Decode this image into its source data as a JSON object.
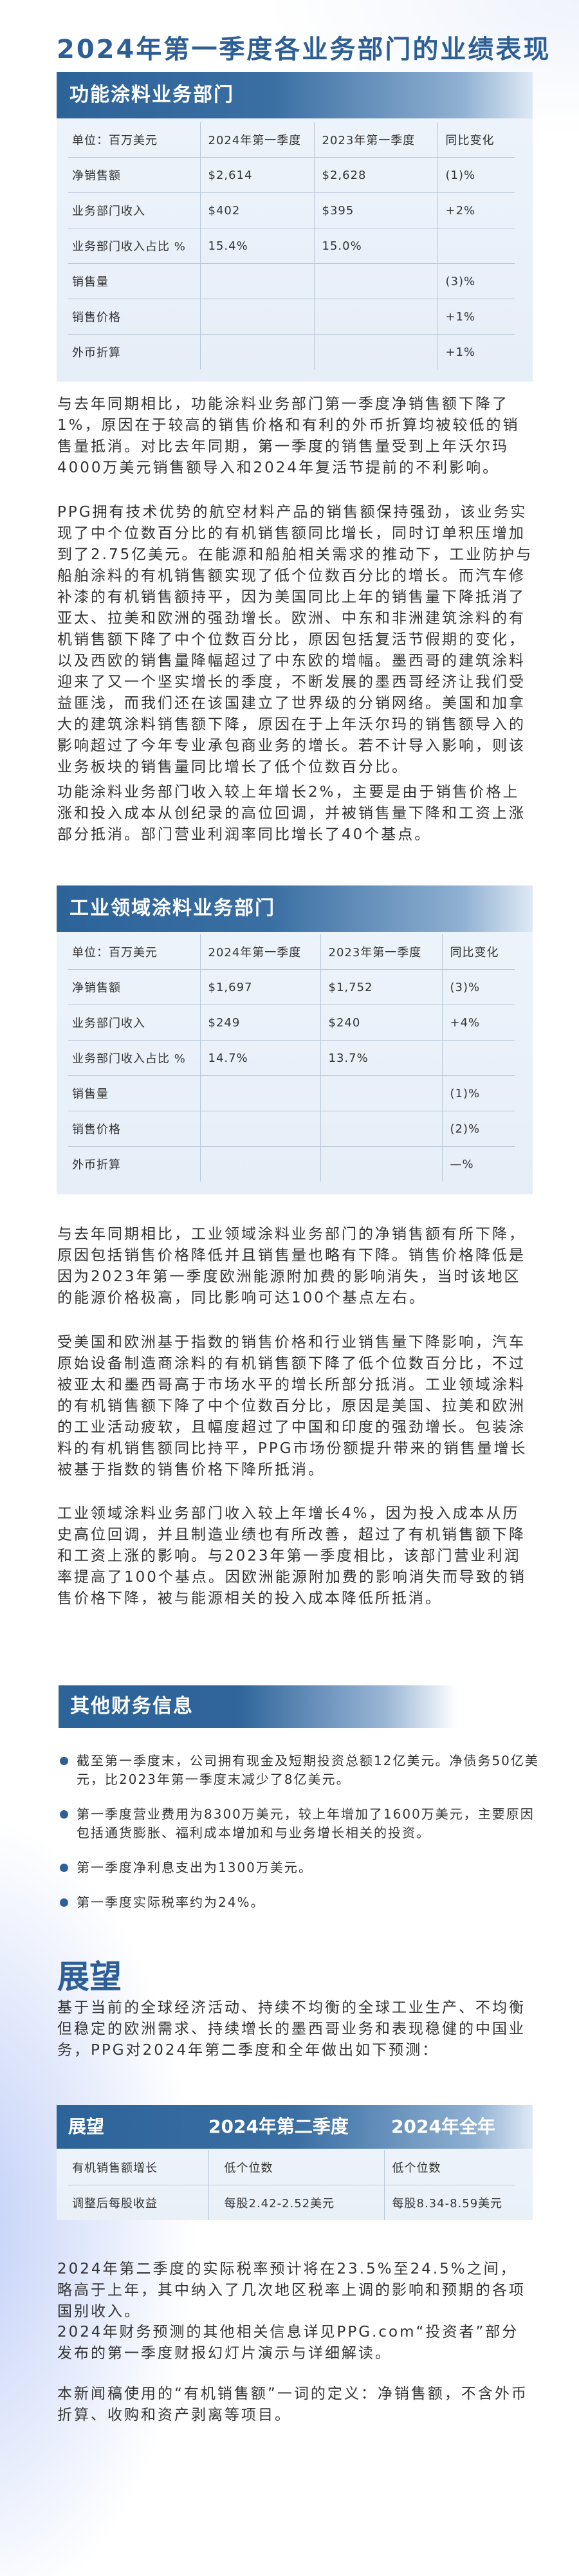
{
  "page_title": "2024年第一季度各业务部门的业绩表现",
  "performance_coatings": {
    "title": "功能涂料业务部门",
    "header": [
      "单位：百万美元",
      "2024年第一季度",
      "2023年第一季度",
      "同比变化"
    ],
    "rows": [
      [
        "净销售额",
        "$2,614",
        "$2,628",
        "(1)%"
      ],
      [
        "业务部门收入",
        "$402",
        "$395",
        "+2%"
      ],
      [
        "业务部门收入占比 %",
        "15.4%",
        "15.0%",
        ""
      ],
      [
        "销售量",
        "",
        "",
        "(3)%"
      ],
      [
        "销售价格",
        "",
        "",
        "+1%"
      ],
      [
        "外币折算",
        "",
        "",
        "+1%"
      ]
    ],
    "paragraphs": [
      "与去年同期相比，功能涂料业务部门第一季度净销售额下降了1%，原因在于较高的销售价格和有利的外币折算均被较低的销售量抵消。对比去年同期，第一季度的销售量受到上年沃尔玛4000万美元销售额导入和2024年复活节提前的不利影响。",
      "PPG拥有技术优势的航空材料产品的销售额保持强劲，该业务实现了中个位数百分比的有机销售额同比增长，同时订单积压增加到了2.75亿美元。在能源和船舶相关需求的推动下，工业防护与船舶涂料的有机销售额实现了低个位数百分比的增长。而汽车修补漆的有机销售额持平，因为美国同比上年的销售量下降抵消了亚太、拉美和欧洲的强劲增长。欧洲、中东和非洲建筑涂料的有机销售额下降了中个位数百分比，原因包括复活节假期的变化，以及西欧的销售量降幅超过了中东欧的增幅。墨西哥的建筑涂料迎来了又一个坚实增长的季度，不断发展的墨西哥经济让我们受益匪浅，而我们还在该国建立了世界级的分销网络。美国和加拿大的建筑涂料销售额下降，原因在于上年沃尔玛的销售额导入的影响超过了今年专业承包商业务的增长。若不计导入影响，则该业务板块的销售量同比增长了低个位数百分比。",
      "功能涂料业务部门收入较上年增长2%，主要是由于销售价格上涨和投入成本从创纪录的高位回调，并被销售量下降和工资上涨部分抵消。部门营业利润率同比增长了40个基点。"
    ]
  },
  "industrial_coatings": {
    "title": "工业领域涂料业务部门",
    "header": [
      "单位：百万美元",
      "2024年第一季度",
      "2023年第一季度",
      "同比变化"
    ],
    "rows": [
      [
        "净销售额",
        "$1,697",
        "$1,752",
        "(3)%"
      ],
      [
        "业务部门收入",
        "$249",
        "$240",
        "+4%"
      ],
      [
        "业务部门收入占比 %",
        "14.7%",
        "13.7%",
        ""
      ],
      [
        "销售量",
        "",
        "",
        "(1)%"
      ],
      [
        "销售价格",
        "",
        "",
        "(2)%"
      ],
      [
        "外币折算",
        "",
        "",
        "—%"
      ]
    ],
    "paragraphs": [
      "与去年同期相比，工业领域涂料业务部门的净销售额有所下降，原因包括销售价格降低并且销售量也略有下降。销售价格降低是因为2023年第一季度欧洲能源附加费的影响消失，当时该地区的能源价格极高，同比影响可达100个基点左右。",
      "受美国和欧洲基于指数的销售价格和行业销售量下降影响，汽车原始设备制造商涂料的有机销售额下降了低个位数百分比，不过被亚太和墨西哥高于市场水平的增长所部分抵消。工业领域涂料的有机销售额下降了中个位数百分比，原因是美国、拉美和欧洲的工业活动疲软，且幅度超过了中国和印度的强劲增长。包装涂料的有机销售额同比持平，PPG市场份额提升带来的销售量增长被基于指数的销售价格下降所抵消。",
      "工业领域涂料业务部门收入较上年增长4%，因为投入成本从历史高位回调，并且制造业绩也有所改善，超过了有机销售额下降和工资上涨的影响。与2023年第一季度相比，该部门营业利润率提高了100个基点。因欧洲能源附加费的影响消失而导致的销售价格下降，被与能源相关的投入成本降低所抵消。"
    ]
  },
  "other_financial": {
    "title": "其他财务信息",
    "bullets": [
      "截至第一季度末，公司拥有现金及短期投资总额12亿美元。净债务50亿美元，比2023年第一季度末减少了8亿美元。",
      "第一季度营业费用为8300万美元，较上年增加了1600万美元，主要原因包括通货膨胀、福利成本增加和与业务增长相关的投资。",
      "第一季度净利息支出为1300万美元。",
      "第一季度实际税率约为24%。"
    ]
  },
  "outlook": {
    "title": "展望",
    "intro": "基于当前的全球经济活动、持续不均衡的全球工业生产、不均衡但稳定的欧洲需求、持续增长的墨西哥业务和表现稳健的中国业务，PPG对2024年第二季度和全年做出如下预测：",
    "table": {
      "header": [
        "展望",
        "2024年第二季度",
        "2024年全年"
      ],
      "rows": [
        [
          "有机销售额增长",
          "低个位数",
          "低个位数"
        ],
        [
          "调整后每股收益",
          "每股2.42-2.52美元",
          "每股8.34-8.59美元"
        ]
      ]
    },
    "paragraphs": [
      "2024年第二季度的实际税率预计将在23.5%至24.5%之间，略高于上年，其中纳入了几次地区税率上调的影响和预期的各项国别收入。",
      "2024年财务预测的其他相关信息详见PPG.com“投资者”部分发布的第一季度财报幻灯片演示与详细解读。",
      "本新闻稿使用的“有机销售额”一词的定义：净销售额，不含外币折算、收购和资产剥离等项目。"
    ]
  },
  "colors": {
    "accent": "#2d5f96",
    "band": "#2c6399",
    "text": "#333333"
  }
}
